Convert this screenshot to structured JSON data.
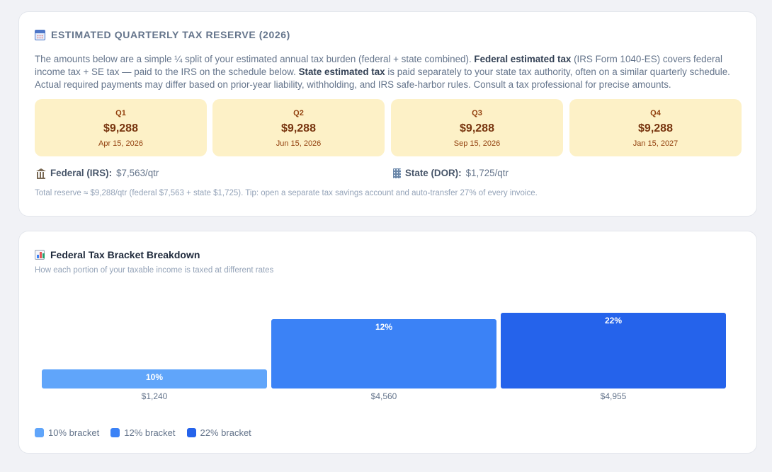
{
  "reserve": {
    "title": "ESTIMATED QUARTERLY TAX RESERVE (2026)",
    "icon": "calendar-icon",
    "description": {
      "p1": "The amounts below are a simple ¼ split of your estimated annual tax burden (federal + state combined). ",
      "federal_term": "Federal estimated tax",
      "p2": " (IRS Form 1040-ES) covers federal income tax + SE tax — paid to the IRS on the schedule below. ",
      "state_term": "State estimated tax",
      "p3": " is paid separately to your state tax authority, often on a similar quarterly schedule. Actual required payments may differ based on prior-year liability, withholding, and IRS safe-harbor rules. Consult a tax professional for precise amounts."
    },
    "quarters": [
      {
        "label": "Q1",
        "amount": "$9,288",
        "date": "Apr 15, 2026"
      },
      {
        "label": "Q2",
        "amount": "$9,288",
        "date": "Jun 15, 2026"
      },
      {
        "label": "Q3",
        "amount": "$9,288",
        "date": "Sep 15, 2026"
      },
      {
        "label": "Q4",
        "amount": "$9,288",
        "date": "Jan 15, 2027"
      }
    ],
    "federal": {
      "icon": "bank-icon",
      "label": "Federal (IRS):",
      "value": "$7,563/qtr"
    },
    "state": {
      "icon": "office-building-icon",
      "label": "State (DOR):",
      "value": "$1,725/qtr"
    },
    "footnote": "Total reserve ≈ $9,288/qtr (federal $7,563 + state $1,725). Tip: open a separate tax savings account and auto-transfer 27% of every invoice."
  },
  "bracket": {
    "title": "Federal Tax Bracket Breakdown",
    "icon": "bar-chart-icon",
    "subtitle": "How each portion of your taxable income is taxed at different rates",
    "legend": [
      {
        "label": "10% bracket",
        "color": "#60a5fa"
      },
      {
        "label": "12% bracket",
        "color": "#3b82f6"
      },
      {
        "label": "22% bracket",
        "color": "#2563eb"
      }
    ]
  },
  "chart_data": {
    "type": "bar",
    "categories": [
      "10%",
      "12%",
      "22%"
    ],
    "values": [
      1240,
      4560,
      4955
    ],
    "value_labels": [
      "$1,240",
      "$4,560",
      "$4,955"
    ],
    "colors": [
      "#60a5fa",
      "#3b82f6",
      "#2563eb"
    ],
    "grid": false
  }
}
